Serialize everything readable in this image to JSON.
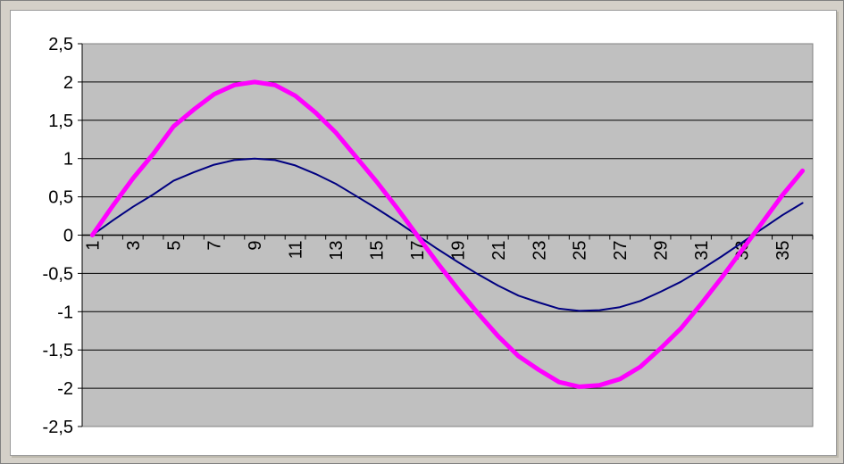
{
  "chart_data": {
    "type": "line",
    "title": "",
    "xlabel": "",
    "ylabel": "",
    "ylim": [
      -2.5,
      2.5
    ],
    "yticks": [
      "2,5",
      "2",
      "1,5",
      "1",
      "0,5",
      "0",
      "-0,5",
      "-1",
      "-1,5",
      "-2",
      "-2,5"
    ],
    "ytick_values": [
      2.5,
      2,
      1.5,
      1,
      0.5,
      0,
      -0.5,
      -1,
      -1.5,
      -2,
      -2.5
    ],
    "x": [
      1,
      2,
      3,
      4,
      5,
      6,
      7,
      8,
      9,
      10,
      11,
      12,
      13,
      14,
      15,
      16,
      17,
      18,
      19,
      20,
      21,
      22,
      23,
      24,
      25,
      26,
      27,
      28,
      29,
      30,
      31,
      32,
      33,
      34,
      35,
      36
    ],
    "xtick_labels": [
      "1",
      "3",
      "5",
      "7",
      "9",
      "11",
      "13",
      "15",
      "17",
      "19",
      "21",
      "23",
      "25",
      "27",
      "29",
      "31",
      "33",
      "35"
    ],
    "xtick_values": [
      1,
      3,
      5,
      7,
      9,
      11,
      13,
      15,
      17,
      19,
      21,
      23,
      25,
      27,
      29,
      31,
      33,
      35
    ],
    "grid": "horizontal",
    "plot_background": "#c0c0c0",
    "series": [
      {
        "name": "",
        "color": "#000080",
        "line_width": 2,
        "values": [
          0,
          0.19,
          0.37,
          0.53,
          0.71,
          0.82,
          0.92,
          0.98,
          1.0,
          0.98,
          0.91,
          0.8,
          0.67,
          0.51,
          0.35,
          0.18,
          0,
          -0.18,
          -0.35,
          -0.51,
          -0.66,
          -0.79,
          -0.88,
          -0.96,
          -0.99,
          -0.98,
          -0.94,
          -0.86,
          -0.74,
          -0.61,
          -0.45,
          -0.28,
          -0.1,
          0.08,
          0.26,
          0.42
        ]
      },
      {
        "name": "",
        "color": "#ff00ff",
        "line_width": 5,
        "values": [
          0,
          0.38,
          0.74,
          1.06,
          1.42,
          1.64,
          1.84,
          1.96,
          2.0,
          1.96,
          1.82,
          1.6,
          1.34,
          1.02,
          0.7,
          0.36,
          0,
          -0.36,
          -0.7,
          -1.02,
          -1.32,
          -1.58,
          -1.76,
          -1.92,
          -1.98,
          -1.96,
          -1.88,
          -1.72,
          -1.48,
          -1.22,
          -0.9,
          -0.56,
          -0.2,
          0.16,
          0.52,
          0.84
        ]
      }
    ]
  }
}
